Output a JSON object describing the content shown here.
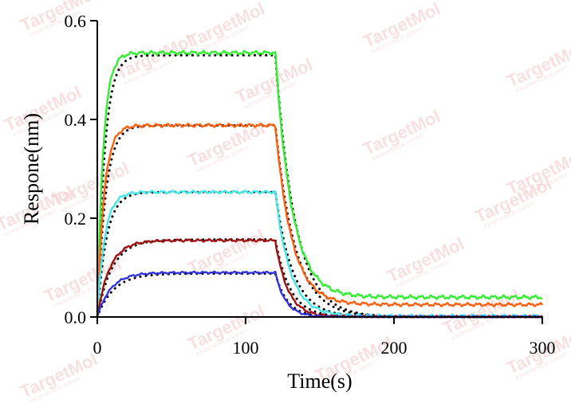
{
  "watermark": {
    "brand": "TargetMol",
    "tagline": "A BIOCHEMICAL EXPERT",
    "color": "#f1c7c7"
  },
  "chart_data": {
    "type": "line",
    "title": "",
    "xlabel": "Time(s)",
    "ylabel": "Respone(nm)",
    "xlim": [
      0,
      300
    ],
    "ylim": [
      0,
      0.6
    ],
    "xticks": [
      0,
      100,
      200,
      300
    ],
    "xtick_labels": [
      "0",
      "100",
      "200",
      "300"
    ],
    "yticks": [
      0,
      0.2,
      0.4,
      0.6
    ],
    "ytick_labels": [
      "0.0",
      "0.2",
      "0.4",
      "0.6"
    ],
    "association_end": 120,
    "series": [
      {
        "name": "green",
        "color": "#33ee33",
        "plateau": 0.535,
        "k_on": 0.25,
        "k_off": 0.09,
        "residual": 0.04,
        "noise": 0.004,
        "fit_plateau": 0.53,
        "fit_k_on": 0.2,
        "fit_k_off": 0.075
      },
      {
        "name": "orange",
        "color": "#ff6010",
        "plateau": 0.388,
        "k_on": 0.22,
        "k_off": 0.09,
        "residual": 0.025,
        "noise": 0.0035,
        "fit_plateau": 0.388,
        "fit_k_on": 0.18,
        "fit_k_off": 0.075
      },
      {
        "name": "cyan",
        "color": "#44e6e6",
        "plateau": 0.253,
        "k_on": 0.2,
        "k_off": 0.1,
        "residual": 0.002,
        "noise": 0.003,
        "fit_plateau": 0.253,
        "fit_k_on": 0.16,
        "fit_k_off": 0.085
      },
      {
        "name": "dark-red",
        "color": "#a01010",
        "plateau": 0.155,
        "k_on": 0.12,
        "k_off": 0.12,
        "residual": 0.0,
        "noise": 0.0025,
        "fit_plateau": 0.157,
        "fit_k_on": 0.1,
        "fit_k_off": 0.1
      },
      {
        "name": "blue",
        "color": "#3333dd",
        "plateau": 0.09,
        "k_on": 0.11,
        "k_off": 0.14,
        "residual": 0.0,
        "noise": 0.002,
        "fit_plateau": 0.088,
        "fit_k_on": 0.09,
        "fit_k_off": 0.12
      }
    ],
    "fit_style": "black dotted",
    "grid": false,
    "legend": "none"
  }
}
